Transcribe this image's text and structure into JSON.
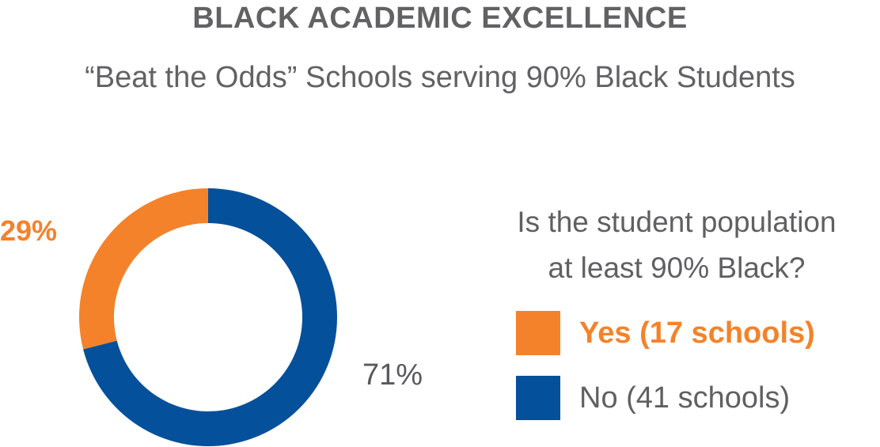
{
  "header": {
    "title": "BLACK ACADEMIC EXCELLENCE",
    "subtitle": "“Beat the Odds” Schools serving 90% Black Students"
  },
  "colors": {
    "yes": "#f4822a",
    "no": "#04509a",
    "text": "#616264"
  },
  "chart_data": {
    "type": "pie",
    "donut": true,
    "legend_title": "Is the student population at least 90% Black?",
    "legend_placement": "right",
    "slices": [
      {
        "label": "Yes (17 schools)",
        "value": 29,
        "display": "29%",
        "schools": 17
      },
      {
        "label": "No (41 schools)",
        "value": 71,
        "display": "71%",
        "schools": 41
      }
    ],
    "legend_title_lines": [
      "Is the student population",
      "at least 90% Black?"
    ]
  }
}
